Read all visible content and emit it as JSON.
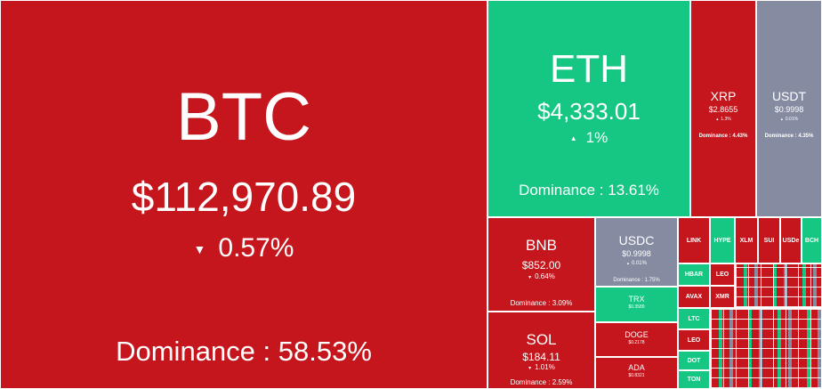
{
  "colors": {
    "down": "#c4161c",
    "up": "#16c784",
    "neutral": "#858ca2"
  },
  "arrows": {
    "down": "▼",
    "up": "▲"
  },
  "coins": {
    "btc": {
      "symbol": "BTC",
      "price": "$112,970.89",
      "change": "0.57%",
      "dominance": "Dominance : 58.53%"
    },
    "eth": {
      "symbol": "ETH",
      "price": "$4,333.01",
      "change": "1%",
      "dominance": "Dominance : 13.61%"
    },
    "xrp": {
      "symbol": "XRP",
      "price": "$2.8655",
      "change": "1.3%",
      "dominance": "Dominance : 4.43%"
    },
    "usdt": {
      "symbol": "USDT",
      "price": "$0.9998",
      "change": "0.01%",
      "dominance": "Dominance : 4.35%"
    },
    "bnb": {
      "symbol": "BNB",
      "price": "$852.00",
      "change": "0.64%",
      "dominance": "Dominance : 3.09%"
    },
    "usdc": {
      "symbol": "USDC",
      "price": "$0.9998",
      "change": "0.01%",
      "dominance": "Dominance : 1.75%"
    },
    "sol": {
      "symbol": "SOL",
      "price": "$184.11",
      "change": "1.01%",
      "dominance": "Dominance : 2.59%"
    },
    "trx": {
      "symbol": "TRX",
      "price": "$0.3589"
    },
    "doge": {
      "symbol": "DOGE",
      "price": "$0.2178"
    },
    "ada": {
      "symbol": "ADA",
      "price": "$0.8321"
    }
  },
  "small_coins": [
    "LINK",
    "HYPE",
    "XLM",
    "SUI",
    "USDe",
    "BCH",
    "HBAR",
    "LEO",
    "AVAX",
    "LTC",
    "LEO",
    "DOT",
    "XMR",
    "TON"
  ]
}
